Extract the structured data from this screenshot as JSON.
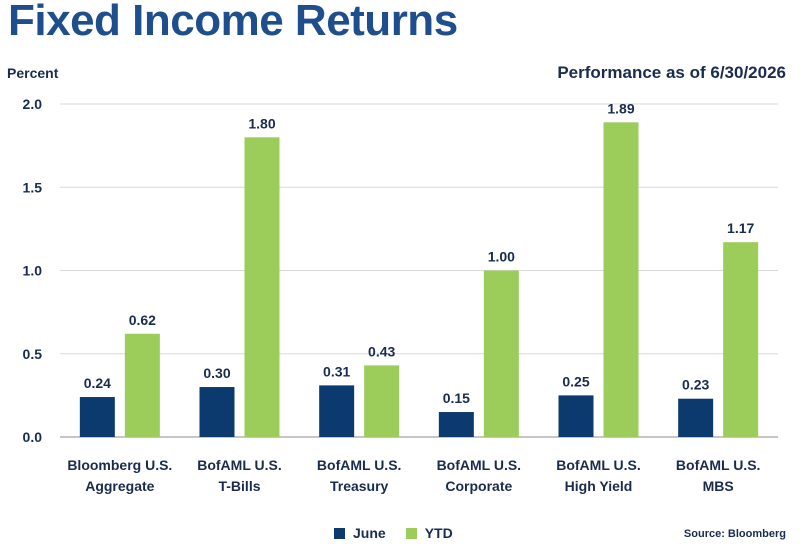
{
  "chart_data": {
    "type": "bar",
    "title": "Fixed Income Returns",
    "subtitle": "Performance as of 6/30/2026",
    "ylabel": "Percent",
    "xlabel": "",
    "ylim": [
      0,
      2.0
    ],
    "yticks": [
      "0.0",
      "0.5",
      "1.0",
      "1.5",
      "2.0"
    ],
    "grid": true,
    "legend_position": "bottom",
    "categories": [
      [
        "Bloomberg U.S.",
        "Aggregate"
      ],
      [
        "BofAML U.S.",
        "T-Bills"
      ],
      [
        "BofAML U.S.",
        "Treasury"
      ],
      [
        "BofAML U.S.",
        "Corporate"
      ],
      [
        "BofAML U.S.",
        "High Yield"
      ],
      [
        "BofAML U.S.",
        "MBS"
      ]
    ],
    "series": [
      {
        "name": "June",
        "color": "#0d3a6e",
        "values": [
          0.24,
          0.3,
          0.31,
          0.15,
          0.25,
          0.23
        ]
      },
      {
        "name": "YTD",
        "color": "#9ccc5a",
        "values": [
          0.62,
          1.8,
          0.43,
          1.0,
          1.89,
          1.17
        ]
      }
    ],
    "value_labels": [
      [
        "0.24",
        "0.30",
        "0.31",
        "0.15",
        "0.25",
        "0.23"
      ],
      [
        "0.62",
        "1.80",
        "0.43",
        "1.00",
        "1.89",
        "1.17"
      ]
    ],
    "source": "Source: Bloomberg"
  }
}
